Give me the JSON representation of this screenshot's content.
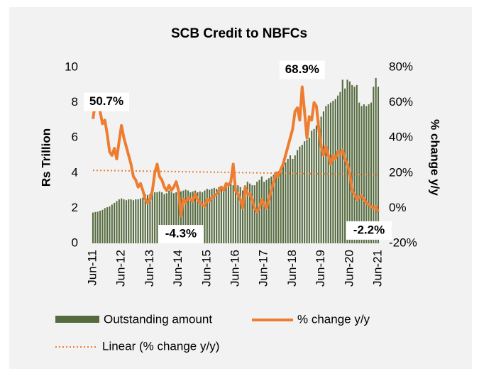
{
  "chart_data": {
    "type": "bar_line",
    "title": "SCB Credit to NBFCs",
    "y_label": "Rs Trillion",
    "y2_label": "% change y/y",
    "categories": [
      "Jun-11",
      null,
      null,
      null,
      null,
      null,
      null,
      null,
      null,
      null,
      null,
      null,
      "Jun-12",
      null,
      null,
      null,
      null,
      null,
      null,
      null,
      null,
      null,
      null,
      null,
      "Jun-13",
      null,
      null,
      null,
      null,
      null,
      null,
      null,
      null,
      null,
      null,
      null,
      "Jun-14",
      null,
      null,
      null,
      null,
      null,
      null,
      null,
      null,
      null,
      null,
      null,
      "Jun-15",
      null,
      null,
      null,
      null,
      null,
      null,
      null,
      null,
      null,
      null,
      null,
      "Jun-16",
      null,
      null,
      null,
      null,
      null,
      null,
      null,
      null,
      null,
      null,
      null,
      "Jun-17",
      null,
      null,
      null,
      null,
      null,
      null,
      null,
      null,
      null,
      null,
      null,
      "Jun-18",
      null,
      null,
      null,
      null,
      null,
      null,
      null,
      null,
      null,
      null,
      null,
      "Jun-19",
      null,
      null,
      null,
      null,
      null,
      null,
      null,
      null,
      null,
      null,
      null,
      "Jun-20",
      null,
      null,
      null,
      null,
      null,
      null,
      null,
      null,
      null,
      null,
      null,
      "Jun-21"
    ],
    "series": [
      {
        "name": "Outstanding amount",
        "color": "#556b3f",
        "kind": "bar",
        "axis": "y",
        "values": [
          1.75,
          1.78,
          1.8,
          1.85,
          1.9,
          2.0,
          2.05,
          2.1,
          2.2,
          2.3,
          2.4,
          2.5,
          2.55,
          2.5,
          2.45,
          2.5,
          2.5,
          2.45,
          2.5,
          2.5,
          2.55,
          2.6,
          2.8,
          2.75,
          2.8,
          2.85,
          2.9,
          2.9,
          2.95,
          2.9,
          2.8,
          2.85,
          3.0,
          2.9,
          2.85,
          2.9,
          2.9,
          2.95,
          3.0,
          3.05,
          3.0,
          2.9,
          2.95,
          3.0,
          2.9,
          2.95,
          2.9,
          3.0,
          3.1,
          3.05,
          3.1,
          3.15,
          3.1,
          3.2,
          3.25,
          3.2,
          3.3,
          3.3,
          3.4,
          3.3,
          3.4,
          3.3,
          3.2,
          3.0,
          3.3,
          3.5,
          3.4,
          3.3,
          3.3,
          3.5,
          3.6,
          3.8,
          3.5,
          3.6,
          3.7,
          3.8,
          3.9,
          4.0,
          4.1,
          4.3,
          4.5,
          4.6,
          4.8,
          5.0,
          4.8,
          5.0,
          5.3,
          5.5,
          5.6,
          5.8,
          5.9,
          6.0,
          6.4,
          6.5,
          6.7,
          7.0,
          7.2,
          7.5,
          7.8,
          7.9,
          8.0,
          8.1,
          8.2,
          8.4,
          8.6,
          9.3,
          8.8,
          9.3,
          9.2,
          9.0,
          8.9,
          9.0,
          8.0,
          7.8,
          7.9,
          7.8,
          7.9,
          8.0,
          8.9,
          9.4,
          8.9
        ]
      },
      {
        "name": "% change y/y",
        "color": "#ed7d31",
        "kind": "line",
        "axis": "y2",
        "values": [
          50.7,
          60,
          61,
          55,
          48,
          50,
          42,
          32,
          30,
          34,
          28,
          38,
          47,
          40,
          35,
          30,
          25,
          18,
          16,
          12,
          14,
          10,
          5,
          3,
          5,
          10,
          20,
          25,
          18,
          16,
          12,
          10,
          13,
          10,
          12,
          15,
          10,
          -4.3,
          5,
          3,
          6,
          5,
          4,
          8,
          5,
          3,
          2,
          1,
          5,
          4,
          6,
          7,
          8,
          10,
          12,
          10,
          14,
          13,
          15,
          25,
          10,
          8,
          5,
          0,
          12,
          8,
          8,
          5,
          0,
          -2,
          0,
          5,
          2,
          0,
          5,
          10,
          15,
          20,
          18,
          22,
          25,
          30,
          35,
          40,
          45,
          55,
          57,
          50,
          68.9,
          55,
          40,
          52,
          50,
          60,
          58,
          45,
          35,
          30,
          35,
          30,
          25,
          30,
          28,
          32,
          31,
          33,
          28,
          25,
          20,
          10,
          8,
          5,
          6,
          7,
          5,
          3,
          2,
          1,
          0,
          1,
          -2.2
        ],
        "value_labels": [
          "50.7%",
          null,
          null,
          null,
          null,
          null,
          null,
          null,
          null,
          null,
          null,
          null,
          null,
          null,
          null,
          null,
          null,
          null,
          null,
          null,
          null,
          null,
          null,
          null,
          null,
          null,
          null,
          null,
          null,
          null,
          null,
          null,
          null,
          null,
          null,
          null,
          null,
          "-4.3%",
          null,
          null,
          null,
          null,
          null,
          null,
          null,
          null,
          null,
          null,
          null,
          null,
          null,
          null,
          null,
          null,
          null,
          null,
          null,
          null,
          null,
          null,
          null,
          null,
          null,
          null,
          null,
          null,
          null,
          null,
          null,
          null,
          null,
          null,
          null,
          null,
          null,
          null,
          null,
          null,
          null,
          null,
          null,
          null,
          null,
          null,
          null,
          null,
          null,
          null,
          "68.9%",
          null,
          null,
          null,
          null,
          null,
          null,
          null,
          null,
          null,
          null,
          null,
          null,
          null,
          null,
          null,
          null,
          null,
          null,
          null,
          null,
          null,
          null,
          null,
          null,
          null,
          null,
          null,
          null,
          null,
          null,
          null,
          "-2.2%"
        ]
      }
    ],
    "trend": {
      "name": "Linear (% change y/y)",
      "color": "#ed7d31",
      "start": 21.5,
      "end": 19
    },
    "ylim": [
      0,
      10
    ],
    "yticks": [
      0,
      2,
      4,
      6,
      8,
      10
    ],
    "y2lim": [
      -20,
      80
    ],
    "y2ticks": [
      {
        "value": -20,
        "label": "-20%"
      },
      {
        "value": 0,
        "label": "0%"
      },
      {
        "value": 20,
        "label": "20%"
      },
      {
        "value": 40,
        "label": "40%"
      },
      {
        "value": 60,
        "label": "60%"
      },
      {
        "value": 80,
        "label": "80%"
      }
    ],
    "legend": "bottom-left"
  }
}
